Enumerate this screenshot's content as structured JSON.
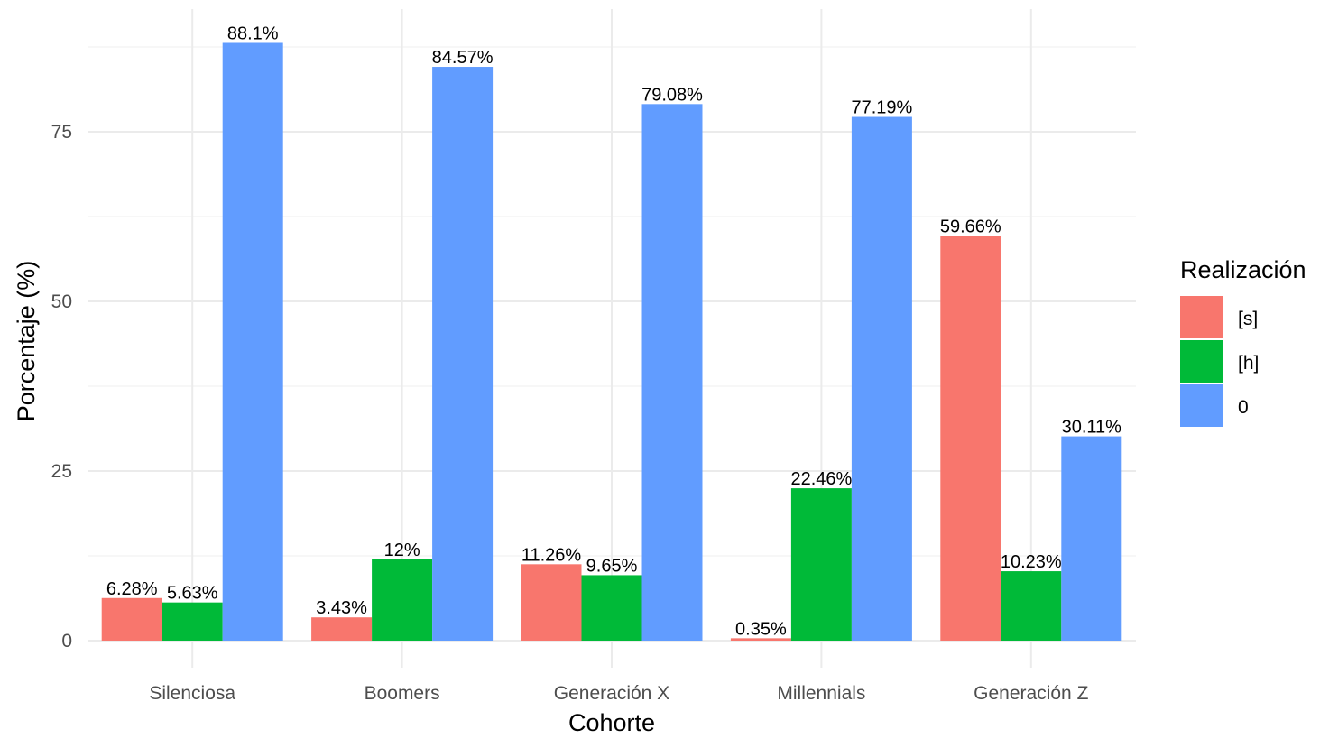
{
  "chart_data": {
    "type": "bar",
    "title": "",
    "xlabel": "Cohorte",
    "ylabel": "Porcentaje (%)",
    "categories": [
      "Silenciosa",
      "Boomers",
      "Generación X",
      "Millennials",
      "Generación Z"
    ],
    "series": [
      {
        "name": "[s]",
        "color": "#F8766D",
        "values": [
          6.28,
          3.43,
          11.26,
          0.35,
          59.66
        ],
        "labels": [
          "6.28%",
          "3.43%",
          "11.26%",
          "0.35%",
          "59.66%"
        ]
      },
      {
        "name": "[h]",
        "color": "#00BA38",
        "values": [
          5.63,
          12,
          9.65,
          22.46,
          10.23
        ],
        "labels": [
          "5.63%",
          "12%",
          "9.65%",
          "22.46%",
          "10.23%"
        ]
      },
      {
        "name": "0",
        "color": "#619CFF",
        "values": [
          88.1,
          84.57,
          79.08,
          77.19,
          30.11
        ],
        "labels": [
          "88.1%",
          "84.57%",
          "79.08%",
          "77.19%",
          "30.11%"
        ]
      }
    ],
    "ylim": [
      0,
      92.5
    ],
    "yticks": [
      0,
      25,
      50,
      75
    ],
    "ytick_labels": [
      "0",
      "25",
      "50",
      "75"
    ],
    "grid": true,
    "legend": {
      "title": "Realización",
      "placement": "right"
    }
  }
}
